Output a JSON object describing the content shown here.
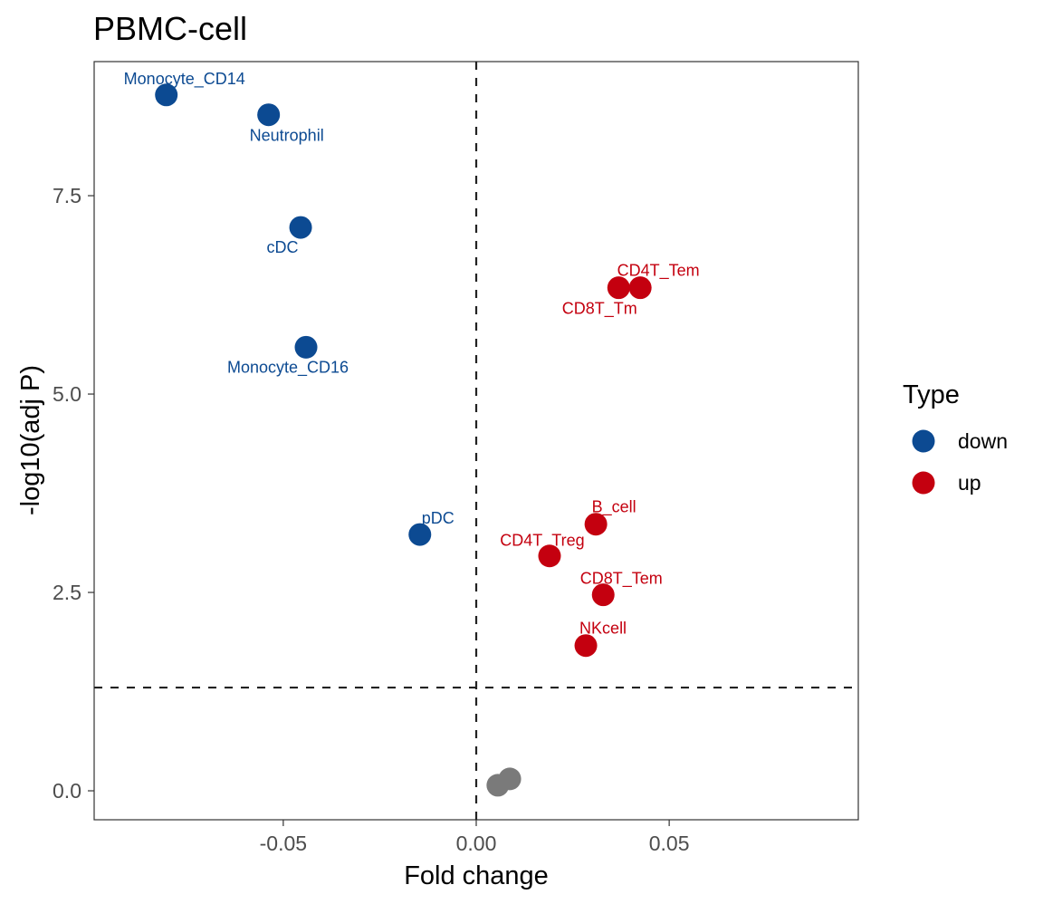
{
  "chart_data": {
    "type": "scatter",
    "title": "PBMC-cell",
    "xlabel": "Fold change",
    "ylabel": "-log10(adj P)",
    "xlim": [
      -0.099,
      0.099
    ],
    "ylim": [
      -0.365,
      9.19
    ],
    "xticks": [
      -0.05,
      0.0,
      0.05
    ],
    "xtick_labels": [
      "-0.05",
      "0.00",
      "0.05"
    ],
    "yticks": [
      0.0,
      2.5,
      5.0,
      7.5
    ],
    "ytick_labels": [
      "0.0",
      "2.5",
      "5.0",
      "7.5"
    ],
    "grid": false,
    "reference_lines": {
      "vertical_x": 0.0,
      "horizontal_y": 1.301,
      "style": "dashed"
    },
    "legend": {
      "title": "Type",
      "position": "right",
      "entries": [
        {
          "name": "down",
          "color": "#0C4A92"
        },
        {
          "name": "up",
          "color": "#C4000F"
        }
      ]
    },
    "ns_color": "#7A7A7A",
    "points": [
      {
        "label": "Monocyte_CD14",
        "x": -0.0803,
        "y": 8.77,
        "type": "down",
        "label_pos": "above"
      },
      {
        "label": "Neutrophil",
        "x": -0.0538,
        "y": 8.52,
        "type": "down",
        "label_pos": "below"
      },
      {
        "label": "cDC",
        "x": -0.0455,
        "y": 7.1,
        "type": "down",
        "label_pos": "below-left"
      },
      {
        "label": "Monocyte_CD16",
        "x": -0.0441,
        "y": 5.59,
        "type": "down",
        "label_pos": "below-left"
      },
      {
        "label": "pDC",
        "x": -0.0146,
        "y": 3.23,
        "type": "down",
        "label_pos": "above-right"
      },
      {
        "label": "CD8T_Tm",
        "x": 0.0369,
        "y": 6.34,
        "type": "up",
        "label_pos": "below-left"
      },
      {
        "label": "CD4T_Tem",
        "x": 0.0425,
        "y": 6.34,
        "type": "up",
        "label_pos": "above"
      },
      {
        "label": "B_cell",
        "x": 0.031,
        "y": 3.36,
        "type": "up",
        "label_pos": "above"
      },
      {
        "label": "CD4T_Treg",
        "x": 0.019,
        "y": 2.96,
        "type": "up",
        "label_pos": "above"
      },
      {
        "label": "CD8T_Tem",
        "x": 0.0329,
        "y": 2.47,
        "type": "up",
        "label_pos": "above"
      },
      {
        "label": "NKcell",
        "x": 0.0284,
        "y": 1.83,
        "type": "up",
        "label_pos": "above"
      },
      {
        "label": "",
        "x": 0.0056,
        "y": 0.07,
        "type": "ns",
        "label_pos": "none"
      },
      {
        "label": "",
        "x": 0.0087,
        "y": 0.15,
        "type": "ns",
        "label_pos": "none"
      }
    ]
  }
}
